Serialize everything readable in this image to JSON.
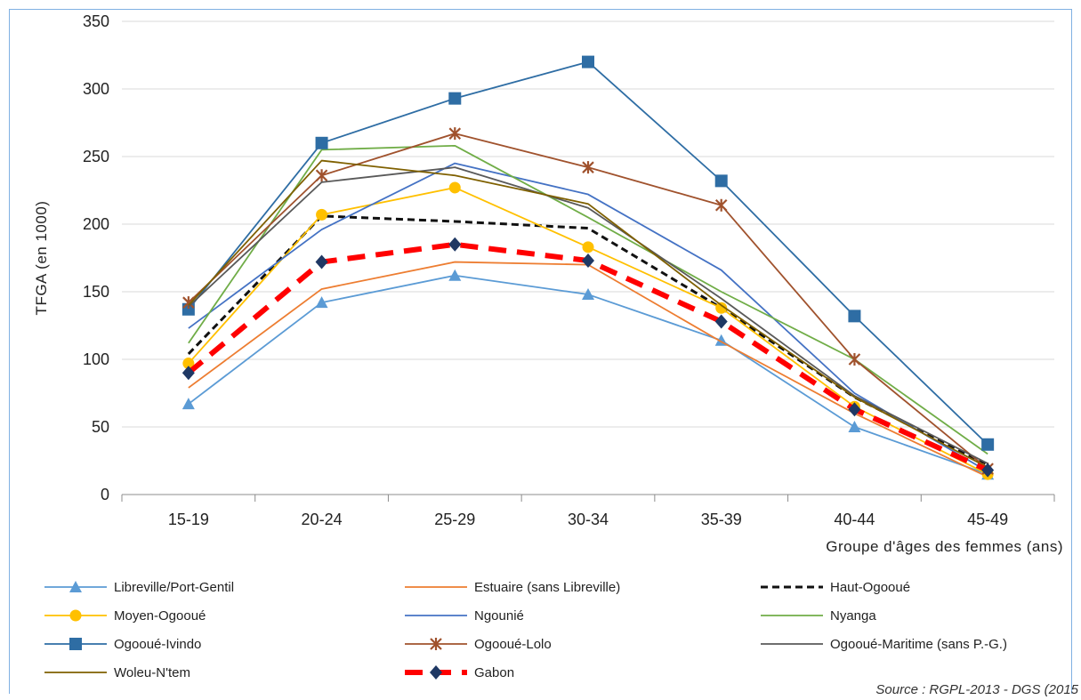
{
  "chart_data": {
    "type": "line",
    "xlabel": "Groupe d'âges des femmes (ans)",
    "ylabel": "TFGA (en 1000)",
    "ylim": [
      0,
      350
    ],
    "yticks": [
      0,
      50,
      100,
      150,
      200,
      250,
      300,
      350
    ],
    "categories": [
      "15-19",
      "20-24",
      "25-29",
      "30-34",
      "35-39",
      "40-44",
      "45-49"
    ],
    "grid": "horizontal",
    "legend_position": "bottom",
    "source": "Source : RGPL-2013 - DGS (2015",
    "series": [
      {
        "name": "Libreville/Port-Gentil",
        "color": "#5b9bd5",
        "marker": "triangle",
        "dash": "solid",
        "values": [
          67,
          142,
          162,
          148,
          114,
          50,
          15
        ]
      },
      {
        "name": "Estuaire (sans Libreville)",
        "color": "#ed7d31",
        "marker": "none",
        "dash": "solid",
        "values": [
          79,
          152,
          172,
          170,
          113,
          60,
          13
        ]
      },
      {
        "name": "Haut-Ogooué",
        "color": "#111111",
        "marker": "none",
        "dash": "dashed",
        "values": [
          104,
          206,
          202,
          197,
          138,
          72,
          22
        ]
      },
      {
        "name": "Moyen-Ogooué",
        "color": "#ffc000",
        "marker": "circle",
        "dash": "solid",
        "values": [
          97,
          207,
          227,
          183,
          138,
          65,
          15
        ]
      },
      {
        "name": "Ngounié",
        "color": "#4472c4",
        "marker": "none",
        "dash": "solid",
        "values": [
          123,
          196,
          245,
          222,
          166,
          75,
          17
        ]
      },
      {
        "name": "Nyanga",
        "color": "#70ad47",
        "marker": "none",
        "dash": "solid",
        "values": [
          112,
          255,
          258,
          205,
          150,
          100,
          30
        ]
      },
      {
        "name": "Ogooué-Ivindo",
        "color": "#2e6da4",
        "marker": "square",
        "dash": "solid",
        "values": [
          137,
          260,
          293,
          320,
          232,
          132,
          37
        ]
      },
      {
        "name": "Ogooué-Lolo",
        "color": "#a0522d",
        "marker": "star",
        "dash": "solid",
        "values": [
          142,
          236,
          267,
          242,
          214,
          100,
          19
        ]
      },
      {
        "name": "Ogooué-Maritime (sans P.-G.)",
        "color": "#595959",
        "marker": "none",
        "dash": "solid",
        "values": [
          139,
          231,
          242,
          212,
          145,
          73,
          23
        ]
      },
      {
        "name": "Woleu-N'tem",
        "color": "#7f6000",
        "marker": "none",
        "dash": "solid",
        "values": [
          140,
          247,
          236,
          215,
          140,
          72,
          20
        ]
      },
      {
        "name": "Gabon",
        "color": "#ff0000",
        "marker": "diamond",
        "dash": "heavy-dashed",
        "values": [
          90,
          172,
          185,
          173,
          128,
          63,
          18
        ]
      }
    ]
  }
}
